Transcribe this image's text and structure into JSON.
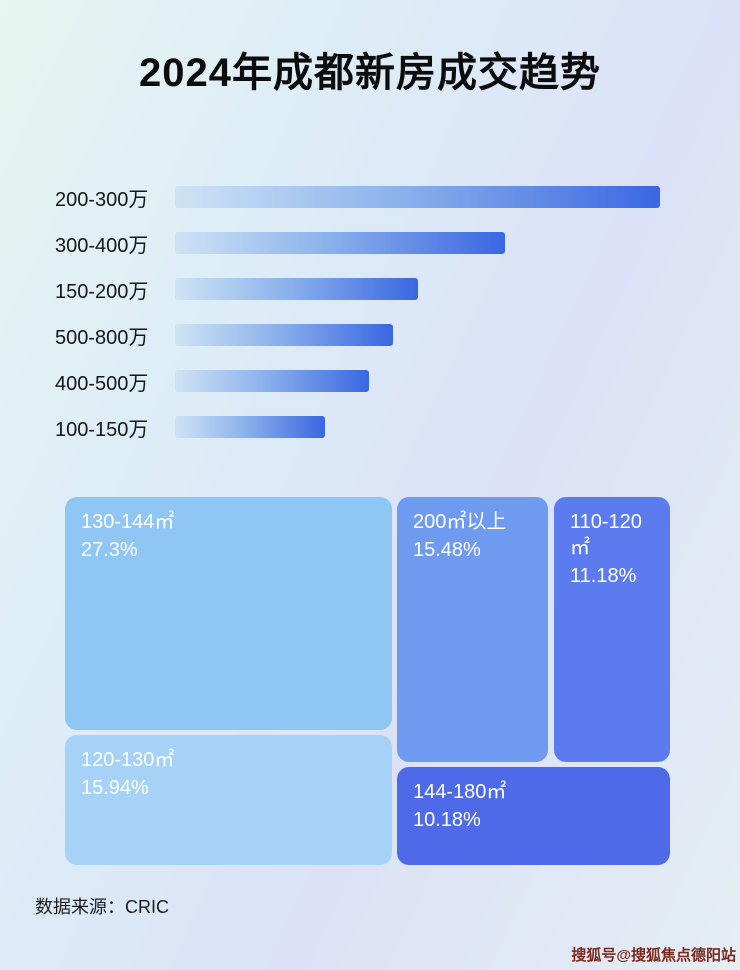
{
  "page": {
    "title": "2024年成都新房成交趋势",
    "source_label": "数据来源：CRIC",
    "watermark": "搜狐号@搜狐焦点德阳站"
  },
  "chart_data": [
    {
      "type": "bar",
      "orientation": "horizontal",
      "title": "2024年成都新房成交趋势",
      "categories": [
        "200-300万",
        "300-400万",
        "150-200万",
        "500-800万",
        "400-500万",
        "100-150万"
      ],
      "values": [
        100,
        68,
        50,
        45,
        40,
        31
      ],
      "units": "relative_length_percent_of_longest_bar",
      "grid": false,
      "legend_position": "none",
      "bar_gradient": [
        "#CFE3F5",
        "#3A67E2"
      ]
    },
    {
      "type": "treemap",
      "blocks": [
        {
          "label": "130-144㎡",
          "value": "27.3%",
          "color": "#8FC6F3"
        },
        {
          "label": "200㎡以上",
          "value": "15.48%",
          "color": "#6E9AF0"
        },
        {
          "label": "110-120㎡",
          "value": "11.18%",
          "color": "#5C7BEE"
        },
        {
          "label": "120-130㎡",
          "value": "15.94%",
          "color": "#A5D2F6"
        },
        {
          "label": "144-180㎡",
          "value": "10.18%",
          "color": "#4F6AE8"
        }
      ]
    }
  ]
}
